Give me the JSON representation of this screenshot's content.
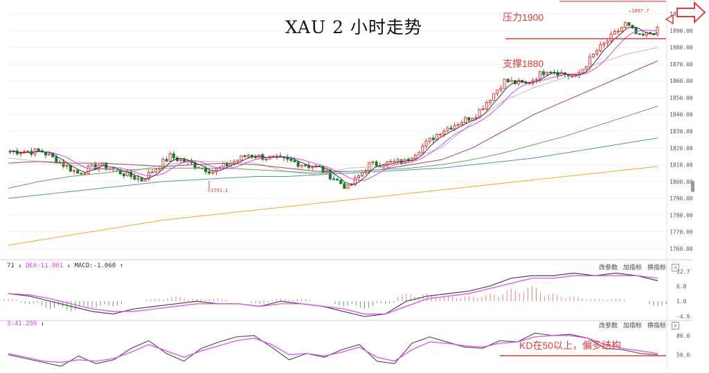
{
  "title": "XAU 2 小时走势",
  "annotations": {
    "resistance": "压力1900",
    "support": "支撑1880",
    "kd_note": "KD在50以上，偏多结构",
    "high_label": "1897.7",
    "low_label": "1791.1"
  },
  "macd_header": {
    "left": "71",
    "dea": "DEA:11.001",
    "macd": "MACD:-1.060"
  },
  "kd_header": {
    "left": "3:41.259"
  },
  "tools": [
    "改参数",
    "加指标",
    "换指标"
  ],
  "tools2": [
    "改参数",
    "加指标",
    "换指标"
  ],
  "colors": {
    "up": "#e53935",
    "down": "#1b7a2a",
    "ma5": "#333333",
    "ma10": "#e040fb",
    "ma20": "#bdbdbd",
    "ma30": "#a0444d",
    "ma60": "#5aa857",
    "ma120": "#4a90c8",
    "ma250": "#f5a623",
    "annotation": "#e53935"
  },
  "chart_data": [
    {
      "type": "candlestick",
      "title": "XAU 2 小时走势",
      "ylim": [
        1755,
        1905
      ],
      "y_ticks": [
        1900,
        1890,
        1880,
        1870,
        1860,
        1850,
        1840,
        1830,
        1820,
        1810,
        1800,
        1790,
        1780,
        1770,
        1760
      ],
      "y_tick_labels": [
        "1900.00",
        "1890.00",
        "1880.00",
        "1870.00",
        "1860.00",
        "1850.00",
        "1840.00",
        "1830.00",
        "1820.00",
        "1810.00",
        "1800.00",
        "1790.00",
        "1780.00",
        "1770.00",
        "1760.00"
      ],
      "key_levels": {
        "resistance": 1900,
        "support": 1880,
        "high": 1897.7,
        "low": 1791.1
      },
      "segments": [
        {
          "price": 1818,
          "noise": 2
        },
        {
          "price": 1818,
          "noise": 2
        },
        {
          "price": 1805,
          "noise": 2
        },
        {
          "price": 1810,
          "noise": 2
        },
        {
          "price": 1801,
          "noise": 2
        },
        {
          "price": 1815,
          "noise": 2
        },
        {
          "price": 1806,
          "noise": 2
        },
        {
          "price": 1816,
          "noise": 2
        },
        {
          "price": 1812,
          "noise": 2
        },
        {
          "price": 1808,
          "noise": 2
        },
        {
          "price": 1796,
          "noise": 2
        },
        {
          "price": 1810,
          "noise": 2
        },
        {
          "price": 1812,
          "noise": 2
        },
        {
          "price": 1830,
          "noise": 2
        },
        {
          "price": 1840,
          "noise": 2
        },
        {
          "price": 1860,
          "noise": 2
        },
        {
          "price": 1858,
          "noise": 2
        },
        {
          "price": 1867,
          "noise": 2
        },
        {
          "price": 1862,
          "noise": 2
        },
        {
          "price": 1878,
          "noise": 2
        },
        {
          "price": 1894,
          "noise": 2
        },
        {
          "price": 1886,
          "noise": 2
        },
        {
          "price": 1890,
          "noise": 2
        }
      ],
      "segment_bars": [
        10,
        10,
        6,
        12,
        8,
        12,
        10,
        12,
        8,
        8,
        6,
        10,
        10,
        10,
        8,
        6,
        6,
        8,
        6,
        8,
        4,
        5,
        6
      ],
      "ma_series": [
        {
          "name": "ma20",
          "values": [
            1814,
            1812,
            1810,
            1808,
            1806,
            1810,
            1812,
            1812,
            1811,
            1806,
            1804,
            1808,
            1809,
            1814,
            1820,
            1835,
            1848,
            1856,
            1862,
            1870,
            1876,
            1880
          ]
        },
        {
          "name": "ma30",
          "values": [
            1811,
            1812,
            1811,
            1811,
            1810,
            1809,
            1810,
            1811,
            1810,
            1808,
            1806,
            1806,
            1807,
            1810,
            1813,
            1820,
            1830,
            1840,
            1848,
            1856,
            1864,
            1872
          ]
        },
        {
          "name": "ma60",
          "values": [
            1796,
            1800,
            1803,
            1805,
            1807,
            1808,
            1808,
            1808,
            1807,
            1806,
            1805,
            1806,
            1807,
            1808,
            1810,
            1813,
            1817,
            1822,
            1827,
            1833,
            1839,
            1845
          ]
        },
        {
          "name": "ma120",
          "values": [
            1790,
            1792,
            1794,
            1796,
            1798,
            1800,
            1801,
            1802,
            1803,
            1803,
            1804,
            1805,
            1806,
            1807,
            1808,
            1810,
            1812,
            1814,
            1817,
            1820,
            1823,
            1826
          ]
        },
        {
          "name": "ma250",
          "values": [
            1762,
            1765,
            1768,
            1771,
            1774,
            1777,
            1779,
            1781,
            1783,
            1785,
            1787,
            1789,
            1791,
            1793,
            1795,
            1797,
            1799,
            1801,
            1803,
            1805,
            1807,
            1809
          ]
        }
      ]
    },
    {
      "type": "bar",
      "title": "MACD",
      "ylim": [
        -6,
        14
      ],
      "y_ticks": [
        12.7,
        6.8,
        1.0,
        -4.9
      ],
      "y_tick_labels": [
        "12.7",
        "6.8",
        "1.0",
        "-4.9"
      ],
      "dif": [
        4,
        3,
        1,
        -1,
        -3,
        -4,
        -2,
        -1,
        0,
        1,
        0,
        0,
        -1,
        1,
        0,
        -1,
        -3,
        -5,
        -4,
        1,
        3,
        4,
        5,
        7,
        10,
        11,
        11,
        12,
        11,
        12,
        11,
        9
      ],
      "dea": [
        4,
        3.5,
        2,
        0,
        -2,
        -3,
        -3,
        -2,
        -1,
        0,
        0,
        0,
        -1,
        0,
        0,
        -1,
        -2,
        -4,
        -4,
        -1,
        2,
        3,
        4,
        6,
        8,
        10,
        10,
        11,
        11,
        11,
        11,
        10
      ],
      "hist": [
        1,
        -1,
        -3,
        -4,
        -3,
        -2,
        0,
        1,
        2,
        1,
        1,
        0,
        -1,
        1,
        1,
        0,
        -2,
        -3,
        -1,
        3,
        3,
        2,
        2,
        3,
        5,
        6,
        3,
        2,
        1,
        1,
        0,
        -2
      ]
    },
    {
      "type": "line",
      "title": "KD",
      "ylim": [
        30,
        95
      ],
      "y_ticks": [
        80.0,
        50.0
      ],
      "y_tick_labels": [
        "80.0",
        "50.0"
      ],
      "reference_line": 50,
      "k": [
        50,
        44,
        38,
        32,
        48,
        36,
        42,
        60,
        72,
        52,
        40,
        60,
        70,
        78,
        80,
        62,
        42,
        52,
        46,
        58,
        66,
        40,
        36,
        68,
        78,
        70,
        62,
        60,
        72,
        70,
        84,
        80,
        82,
        76,
        60,
        58,
        52,
        50
      ],
      "d": [
        52,
        46,
        40,
        38,
        42,
        40,
        44,
        54,
        66,
        56,
        46,
        56,
        64,
        72,
        76,
        66,
        50,
        52,
        48,
        54,
        62,
        46,
        40,
        58,
        70,
        68,
        64,
        62,
        68,
        70,
        78,
        80,
        80,
        76,
        66,
        60,
        56,
        52
      ]
    }
  ]
}
